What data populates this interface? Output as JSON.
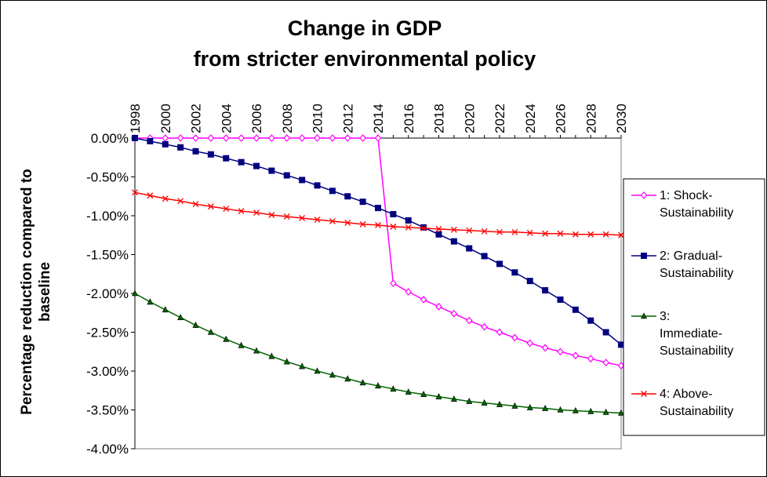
{
  "chart_data": {
    "type": "line",
    "title_lines": [
      "Change in GDP",
      "from stricter environmental policy"
    ],
    "xlabel": "",
    "ylabel_lines": [
      "Percentage reduction compared to",
      "baseline"
    ],
    "x": [
      1998,
      1999,
      2000,
      2001,
      2002,
      2003,
      2004,
      2005,
      2006,
      2007,
      2008,
      2009,
      2010,
      2011,
      2012,
      2013,
      2014,
      2015,
      2016,
      2017,
      2018,
      2019,
      2020,
      2021,
      2022,
      2023,
      2024,
      2025,
      2026,
      2027,
      2028,
      2029,
      2030
    ],
    "x_tick_labels": [
      "1998",
      "2000",
      "2002",
      "2004",
      "2006",
      "2008",
      "2010",
      "2012",
      "2014",
      "2016",
      "2018",
      "2020",
      "2022",
      "2024",
      "2026",
      "2028",
      "2030"
    ],
    "y_tick_labels": [
      "0.00%",
      "-0.50%",
      "-1.00%",
      "-1.50%",
      "-2.00%",
      "-2.50%",
      "-3.00%",
      "-3.50%",
      "-4.00%"
    ],
    "ylim": [
      -4.0,
      0.0
    ],
    "y_unit": "%",
    "legend_position": "right",
    "series": [
      {
        "name_lines": [
          "1: Shock-",
          "Sustainability"
        ],
        "color": "#ff00ff",
        "marker": "diamond",
        "values": [
          0,
          0,
          0,
          0,
          0,
          0,
          0,
          0,
          0,
          0,
          0,
          0,
          0,
          0,
          0,
          0,
          0,
          -1.87,
          -1.98,
          -2.08,
          -2.17,
          -2.26,
          -2.35,
          -2.43,
          -2.5,
          -2.57,
          -2.64,
          -2.7,
          -2.75,
          -2.8,
          -2.84,
          -2.89,
          -2.93
        ]
      },
      {
        "name_lines": [
          "2: Gradual-",
          "Sustainability"
        ],
        "color": "#000080",
        "marker": "square",
        "values": [
          0,
          -0.04,
          -0.08,
          -0.12,
          -0.17,
          -0.21,
          -0.26,
          -0.31,
          -0.36,
          -0.42,
          -0.48,
          -0.54,
          -0.61,
          -0.68,
          -0.75,
          -0.82,
          -0.9,
          -0.98,
          -1.06,
          -1.15,
          -1.24,
          -1.33,
          -1.42,
          -1.52,
          -1.62,
          -1.73,
          -1.84,
          -1.96,
          -2.08,
          -2.21,
          -2.35,
          -2.5,
          -2.66
        ]
      },
      {
        "name_lines": [
          "3:",
          "Immediate-",
          "Sustainability"
        ],
        "color": "#006400",
        "marker": "triangle",
        "values": [
          -2.0,
          -2.11,
          -2.21,
          -2.31,
          -2.41,
          -2.5,
          -2.59,
          -2.67,
          -2.74,
          -2.81,
          -2.88,
          -2.94,
          -3.0,
          -3.05,
          -3.1,
          -3.15,
          -3.19,
          -3.23,
          -3.27,
          -3.3,
          -3.33,
          -3.36,
          -3.39,
          -3.41,
          -3.43,
          -3.45,
          -3.47,
          -3.48,
          -3.5,
          -3.51,
          -3.52,
          -3.53,
          -3.54
        ]
      },
      {
        "name_lines": [
          "4: Above-",
          "Sustainability"
        ],
        "color": "#ff0000",
        "marker": "x",
        "values": [
          -0.7,
          -0.74,
          -0.78,
          -0.81,
          -0.85,
          -0.88,
          -0.91,
          -0.94,
          -0.96,
          -0.99,
          -1.01,
          -1.03,
          -1.05,
          -1.07,
          -1.09,
          -1.11,
          -1.12,
          -1.14,
          -1.15,
          -1.16,
          -1.17,
          -1.18,
          -1.19,
          -1.2,
          -1.21,
          -1.21,
          -1.22,
          -1.23,
          -1.23,
          -1.24,
          -1.24,
          -1.24,
          -1.25
        ]
      }
    ]
  }
}
